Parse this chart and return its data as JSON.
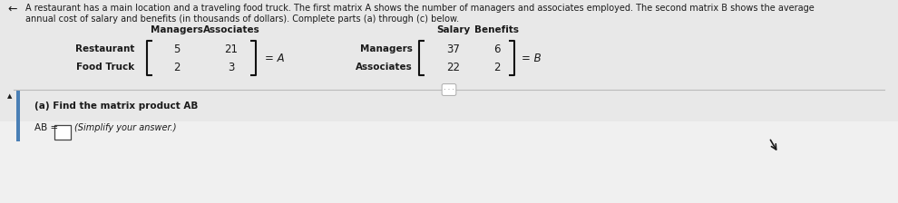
{
  "bg_color": "#ebebeb",
  "panel_color": "#ebebeb",
  "header_line1": "A restaurant has a main location and a traveling food truck. The first matrix A shows the number of managers and associates employed. The second matrix B shows the average",
  "header_line2": "annual cost of salary and benefits (in thousands of dollars). Complete parts (a) through (c) below.",
  "matrix_a_col_labels": [
    "Managers",
    "Associates"
  ],
  "matrix_a_row_labels": [
    "Restaurant",
    "Food Truck"
  ],
  "matrix_a_values": [
    [
      5,
      21
    ],
    [
      2,
      3
    ]
  ],
  "matrix_a_label": "= A",
  "matrix_b_col_labels": [
    "Salary",
    "Benefits"
  ],
  "matrix_b_row_labels": [
    "Managers",
    "Associates"
  ],
  "matrix_b_values": [
    [
      37,
      6
    ],
    [
      22,
      2
    ]
  ],
  "matrix_b_label": "= B",
  "part_a_text": "(a) Find the matrix product AB",
  "part_a_answer_prefix": "AB =",
  "part_a_answer_hint": "(Simplify your answer.)",
  "text_color": "#1a1a1a",
  "bracket_color": "#111111",
  "divider_color": "#bbbbbb",
  "accent_bar_color": "#4a7fb5",
  "bottom_bg": "#f5f5f5"
}
